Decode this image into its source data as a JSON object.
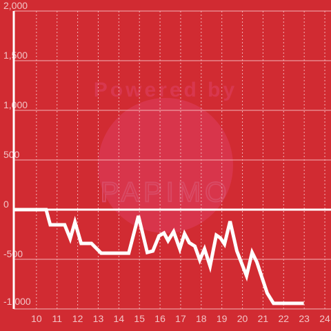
{
  "chart_data": {
    "type": "line",
    "watermark": [
      "Powered by",
      "PAPIMO"
    ],
    "x": [
      8.9,
      10.47,
      10.67,
      11.37,
      11.64,
      11.87,
      12.17,
      12.67,
      13.14,
      14.48,
      14.95,
      15.38,
      15.65,
      15.95,
      16.19,
      16.39,
      16.66,
      16.96,
      17.19,
      17.42,
      17.69,
      17.93,
      18.16,
      18.43,
      18.73,
      18.93,
      19.13,
      19.4,
      19.73,
      20.2,
      20.47,
      20.7,
      21.2,
      21.51,
      22.98
    ],
    "series": [
      {
        "color": "#ffffff",
        "values": [
          0,
          0,
          -153,
          -153,
          -292,
          -125,
          -340,
          -340,
          -438,
          -438,
          -63,
          -431,
          -417,
          -264,
          -236,
          -313,
          -222,
          -396,
          -243,
          -333,
          -368,
          -507,
          -396,
          -569,
          -257,
          -285,
          -347,
          -118,
          -417,
          -667,
          -431,
          -528,
          -840,
          -944,
          -944
        ]
      }
    ],
    "xlim": [
      8.9,
      24.3
    ],
    "xticks": [
      10,
      11,
      12,
      13,
      14,
      15,
      16,
      17,
      18,
      19,
      20,
      21,
      22,
      23,
      24
    ],
    "ylim": [
      -1000,
      2000
    ],
    "yticks": [
      {
        "value": 2000,
        "label": "2,000"
      },
      {
        "value": 1500,
        "label": "1,500"
      },
      {
        "value": 1000,
        "label": "1,000"
      },
      500,
      0,
      -500,
      {
        "value": -1000,
        "label": "-1,000"
      }
    ],
    "grid": true,
    "background": "#d12b32"
  }
}
